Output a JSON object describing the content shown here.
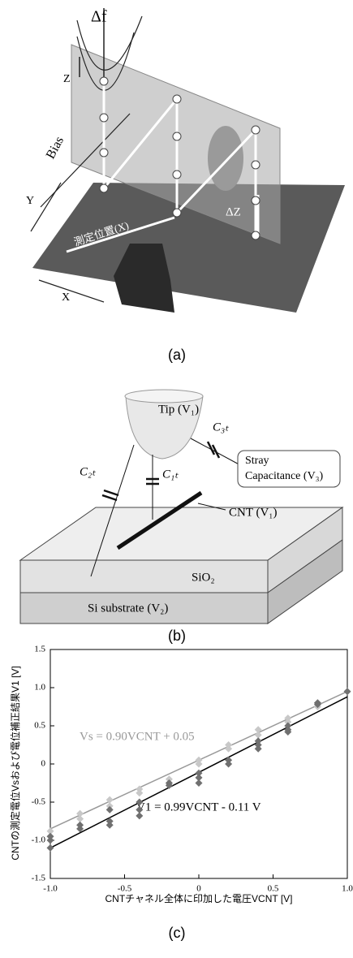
{
  "panel_a": {
    "label": "(a)",
    "delta_f": "Δf",
    "z_axis": "Z",
    "bias": "Bias",
    "y_axis": "Y",
    "position": "測定位置(X)",
    "delta_z": "ΔZ",
    "x_axis": "X"
  },
  "panel_b": {
    "label": "(b)",
    "tip": "Tip (V₁)",
    "c3t": "C₃ₜ",
    "stray": [
      "Stray",
      "Capacitance (V₃)"
    ],
    "c2t": "C₂ₜ",
    "c1t": "C₁ₜ",
    "cnt": "CNT (V₁)",
    "sio2": "SiO₂",
    "si": "Si substrate (V₂)"
  },
  "chart_data": {
    "type": "scatter",
    "panel_label": "(c)",
    "x_label": "CNTチャネル全体に印加した電圧VCNT [V]",
    "y_label": "CNTの測定電位Vsおよび電位補正結果V1 [V]",
    "xlim": [
      -1.0,
      1.0
    ],
    "xticks": [
      {
        "value": -1.0,
        "label": "-1.0"
      },
      {
        "value": -0.5,
        "label": "-0.5"
      },
      0,
      {
        "value": 0.5,
        "label": "0.5"
      },
      {
        "value": 1.0,
        "label": "1.0"
      }
    ],
    "ylim": [
      -1.5,
      1.5
    ],
    "yticks": [
      {
        "value": -1.5,
        "label": "-1.5"
      },
      {
        "value": -1.0,
        "label": "-1.0"
      },
      {
        "value": -0.5,
        "label": "-0.5"
      },
      0,
      {
        "value": 0.5,
        "label": "0.5"
      },
      {
        "value": 1.0,
        "label": "1.0"
      },
      {
        "value": 1.5,
        "label": "1.5"
      }
    ],
    "annotations": [
      "Vs = 0.90VCNT + 0.05",
      "V1 = 0.99VCNT - 0.11 V"
    ],
    "series": [
      {
        "color": "#c8c8c8",
        "x": [
          -1,
          -1,
          -0.8,
          -0.8,
          -0.6,
          -0.6,
          -0.4,
          -0.4,
          -0.2,
          -0.2,
          0,
          0,
          0.2,
          0.2,
          0.4,
          0.4,
          0.6,
          0.6,
          0.8,
          0.8,
          1.0
        ],
        "values": [
          -0.95,
          -0.88,
          -0.65,
          -0.72,
          -0.47,
          -0.55,
          -0.33,
          -0.38,
          -0.2,
          -0.25,
          0.05,
          0.0,
          0.25,
          0.2,
          0.45,
          0.38,
          0.6,
          0.55,
          0.8,
          0.75,
          0.95
        ]
      },
      {
        "color": "#707070",
        "x": [
          -1,
          -1,
          -1,
          -0.8,
          -0.8,
          -0.6,
          -0.6,
          -0.6,
          -0.4,
          -0.4,
          -0.4,
          -0.2,
          -0.2,
          0,
          0,
          0,
          0.2,
          0.2,
          0.4,
          0.4,
          0.4,
          0.6,
          0.6,
          0.6,
          0.8,
          0.8,
          1.0
        ],
        "values": [
          -1.1,
          -1.0,
          -0.95,
          -0.85,
          -0.8,
          -0.6,
          -0.75,
          -0.8,
          -0.5,
          -0.6,
          -0.68,
          -0.25,
          -0.28,
          -0.12,
          -0.18,
          -0.25,
          0.05,
          0.0,
          0.3,
          0.25,
          0.2,
          0.5,
          0.45,
          0.42,
          0.8,
          0.78,
          0.95
        ]
      }
    ],
    "fit_lines": [
      {
        "color": "#999999",
        "x": [
          -1.0,
          1.0
        ],
        "values": [
          -0.85,
          0.95
        ]
      },
      {
        "color": "#000000",
        "x": [
          -1.0,
          1.0
        ],
        "values": [
          -1.1,
          0.88
        ]
      }
    ]
  }
}
